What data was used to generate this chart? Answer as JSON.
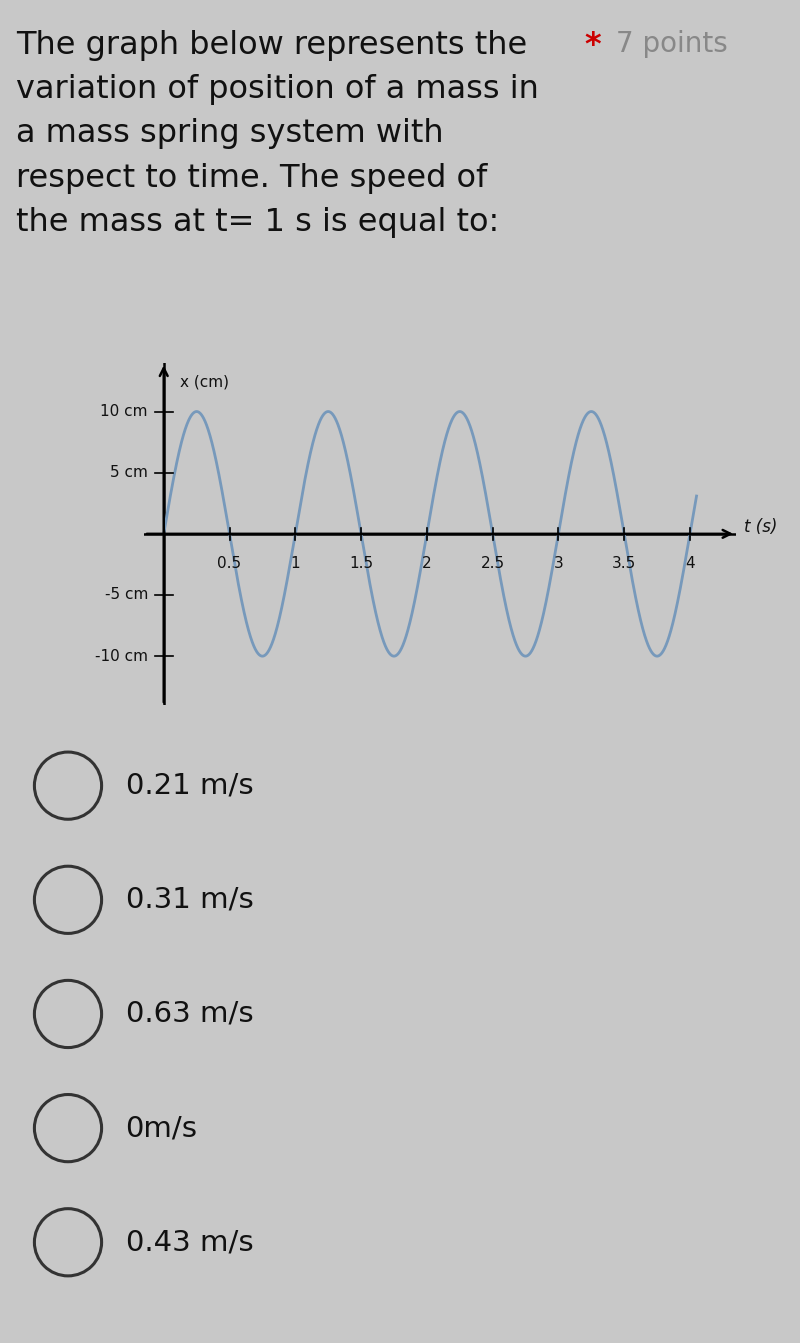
{
  "background_color": "#c8c8c8",
  "title_lines": [
    "The graph below represents the",
    "variation of position of a mass in",
    "a mass spring system with",
    "respect to time. The speed of",
    "the mass at t= 1 s is equal to:"
  ],
  "star_label": "*",
  "points_label": "7 points",
  "xlabel": "t (s)",
  "ylabel": "x (cm)",
  "amplitude": 10,
  "period": 1.0,
  "t_start": 0,
  "t_end": 4.05,
  "xlim": [
    -0.15,
    4.35
  ],
  "ylim": [
    -14,
    14
  ],
  "xticks": [
    0.5,
    1.0,
    1.5,
    2.0,
    2.5,
    3.0,
    3.5,
    4.0
  ],
  "xtick_labels": [
    "0.5",
    "1",
    "1.5",
    "2",
    "2.5",
    "3",
    "3.5",
    "4"
  ],
  "ytick_positions": [
    10,
    5,
    -5,
    -10
  ],
  "ytick_labels": [
    "10 cm",
    "5 cm",
    "-5 cm",
    "-10 cm"
  ],
  "wave_color": "#7799bb",
  "wave_linewidth": 2.0,
  "axis_color": "#000000",
  "options": [
    "0.21 m/s",
    "0.31 m/s",
    "0.63 m/s",
    "0m/s",
    "0.43 m/s"
  ],
  "option_fontsize": 21,
  "title_fontsize": 23,
  "tick_fontsize": 11,
  "star_color": "#cc0000",
  "points_color": "#888888",
  "text_color": "#111111"
}
